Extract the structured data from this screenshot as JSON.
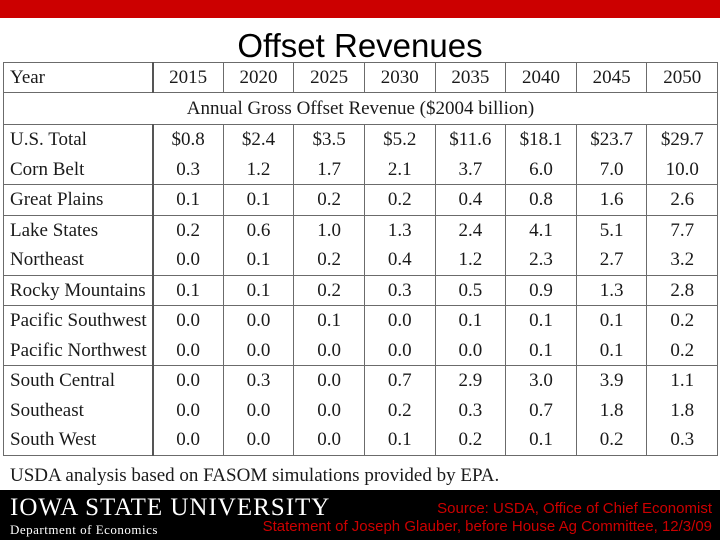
{
  "slide": {
    "title": "Offset Revenues",
    "caption": "USDA analysis based on FASOM simulations provided by EPA."
  },
  "table": {
    "year_label": "Year",
    "years": [
      "2015",
      "2020",
      "2025",
      "2030",
      "2035",
      "2040",
      "2045",
      "2050"
    ],
    "subheader": "Annual Gross Offset Revenue ($2004 billion)",
    "rows": [
      {
        "region": "U.S. Total",
        "values": [
          "$0.8",
          "$2.4",
          "$3.5",
          "$5.2",
          "$11.6",
          "$18.1",
          "$23.7",
          "$29.7"
        ]
      },
      {
        "region": "Corn Belt",
        "values": [
          "0.3",
          "1.2",
          "1.7",
          "2.1",
          "3.7",
          "6.0",
          "7.0",
          "10.0"
        ]
      },
      {
        "region": "Great Plains",
        "values": [
          "0.1",
          "0.1",
          "0.2",
          "0.2",
          "0.4",
          "0.8",
          "1.6",
          "2.6"
        ]
      },
      {
        "region": "Lake States",
        "values": [
          "0.2",
          "0.6",
          "1.0",
          "1.3",
          "2.4",
          "4.1",
          "5.1",
          "7.7"
        ]
      },
      {
        "region": "Northeast",
        "values": [
          "0.0",
          "0.1",
          "0.2",
          "0.4",
          "1.2",
          "2.3",
          "2.7",
          "3.2"
        ]
      },
      {
        "region": "Rocky Mountains",
        "values": [
          "0.1",
          "0.1",
          "0.2",
          "0.3",
          "0.5",
          "0.9",
          "1.3",
          "2.8"
        ]
      },
      {
        "region": "Pacific Southwest",
        "values": [
          "0.0",
          "0.0",
          "0.1",
          "0.0",
          "0.1",
          "0.1",
          "0.1",
          "0.2"
        ]
      },
      {
        "region": "Pacific Northwest",
        "values": [
          "0.0",
          "0.0",
          "0.0",
          "0.0",
          "0.0",
          "0.1",
          "0.1",
          "0.2"
        ]
      },
      {
        "region": "South Central",
        "values": [
          "0.0",
          "0.3",
          "0.0",
          "0.7",
          "2.9",
          "3.0",
          "3.9",
          "1.1"
        ]
      },
      {
        "region": "Southeast",
        "values": [
          "0.0",
          "0.0",
          "0.0",
          "0.2",
          "0.3",
          "0.7",
          "1.8",
          "1.8"
        ]
      },
      {
        "region": "South West",
        "values": [
          "0.0",
          "0.0",
          "0.0",
          "0.1",
          "0.2",
          "0.1",
          "0.2",
          "0.3"
        ]
      }
    ]
  },
  "footer": {
    "university": "IOWA STATE UNIVERSITY",
    "department": "Department of Economics",
    "source_line1": "Source: USDA, Office of Chief Economist",
    "source_line2": "Statement of Joseph Glauber, before House Ag Committee, 12/3/09"
  },
  "colors": {
    "brand_red": "#cc0000",
    "footer_bg": "#000000"
  }
}
